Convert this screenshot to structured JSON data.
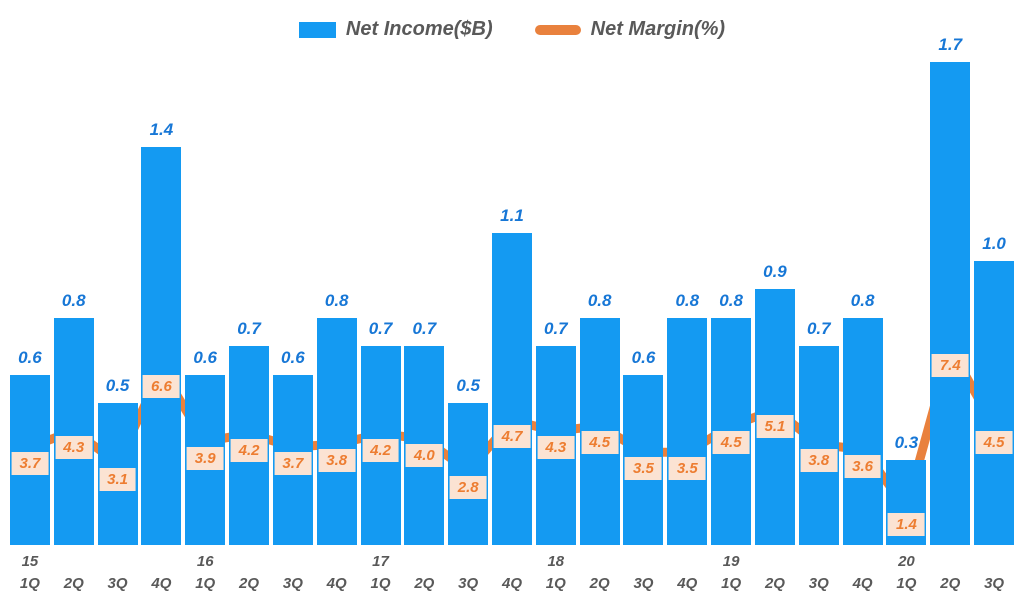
{
  "chart_data": {
    "type": "bar",
    "subtype": "combo-bar-line",
    "title": "",
    "legend_position": "top",
    "grid": false,
    "axes_visible": false,
    "quarters": [
      "1Q",
      "2Q",
      "3Q",
      "4Q",
      "1Q",
      "2Q",
      "3Q",
      "4Q",
      "1Q",
      "2Q",
      "3Q",
      "4Q",
      "1Q",
      "2Q",
      "3Q",
      "4Q",
      "1Q",
      "2Q",
      "3Q",
      "4Q",
      "1Q",
      "2Q",
      "3Q"
    ],
    "years": [
      "15",
      "",
      "",
      "",
      "16",
      "",
      "",
      "",
      "17",
      "",
      "",
      "",
      "18",
      "",
      "",
      "",
      "19",
      "",
      "",
      "",
      "20",
      "",
      ""
    ],
    "series": [
      {
        "name": "Net Income($B)",
        "type": "bar",
        "color": "#149af2",
        "label_color": "#1777d6",
        "values": [
          0.6,
          0.8,
          0.5,
          1.4,
          0.6,
          0.7,
          0.6,
          0.8,
          0.7,
          0.7,
          0.5,
          1.1,
          0.7,
          0.8,
          0.6,
          0.8,
          0.8,
          0.9,
          0.7,
          0.8,
          0.3,
          1.7,
          1.0
        ]
      },
      {
        "name": "Net Margin(%)",
        "type": "line",
        "color": "#e9813d",
        "label_color": "#ed7d31",
        "label_bg": "#fbe3d3",
        "values": [
          3.7,
          4.3,
          3.1,
          6.6,
          3.9,
          4.2,
          3.7,
          3.8,
          4.2,
          4.0,
          2.8,
          4.7,
          4.3,
          4.5,
          3.5,
          3.5,
          4.5,
          5.1,
          3.8,
          3.6,
          1.4,
          7.4,
          4.5
        ]
      }
    ],
    "ylim_left": [
      0,
      1.9
    ],
    "ylim_right": [
      0,
      20.5
    ]
  }
}
